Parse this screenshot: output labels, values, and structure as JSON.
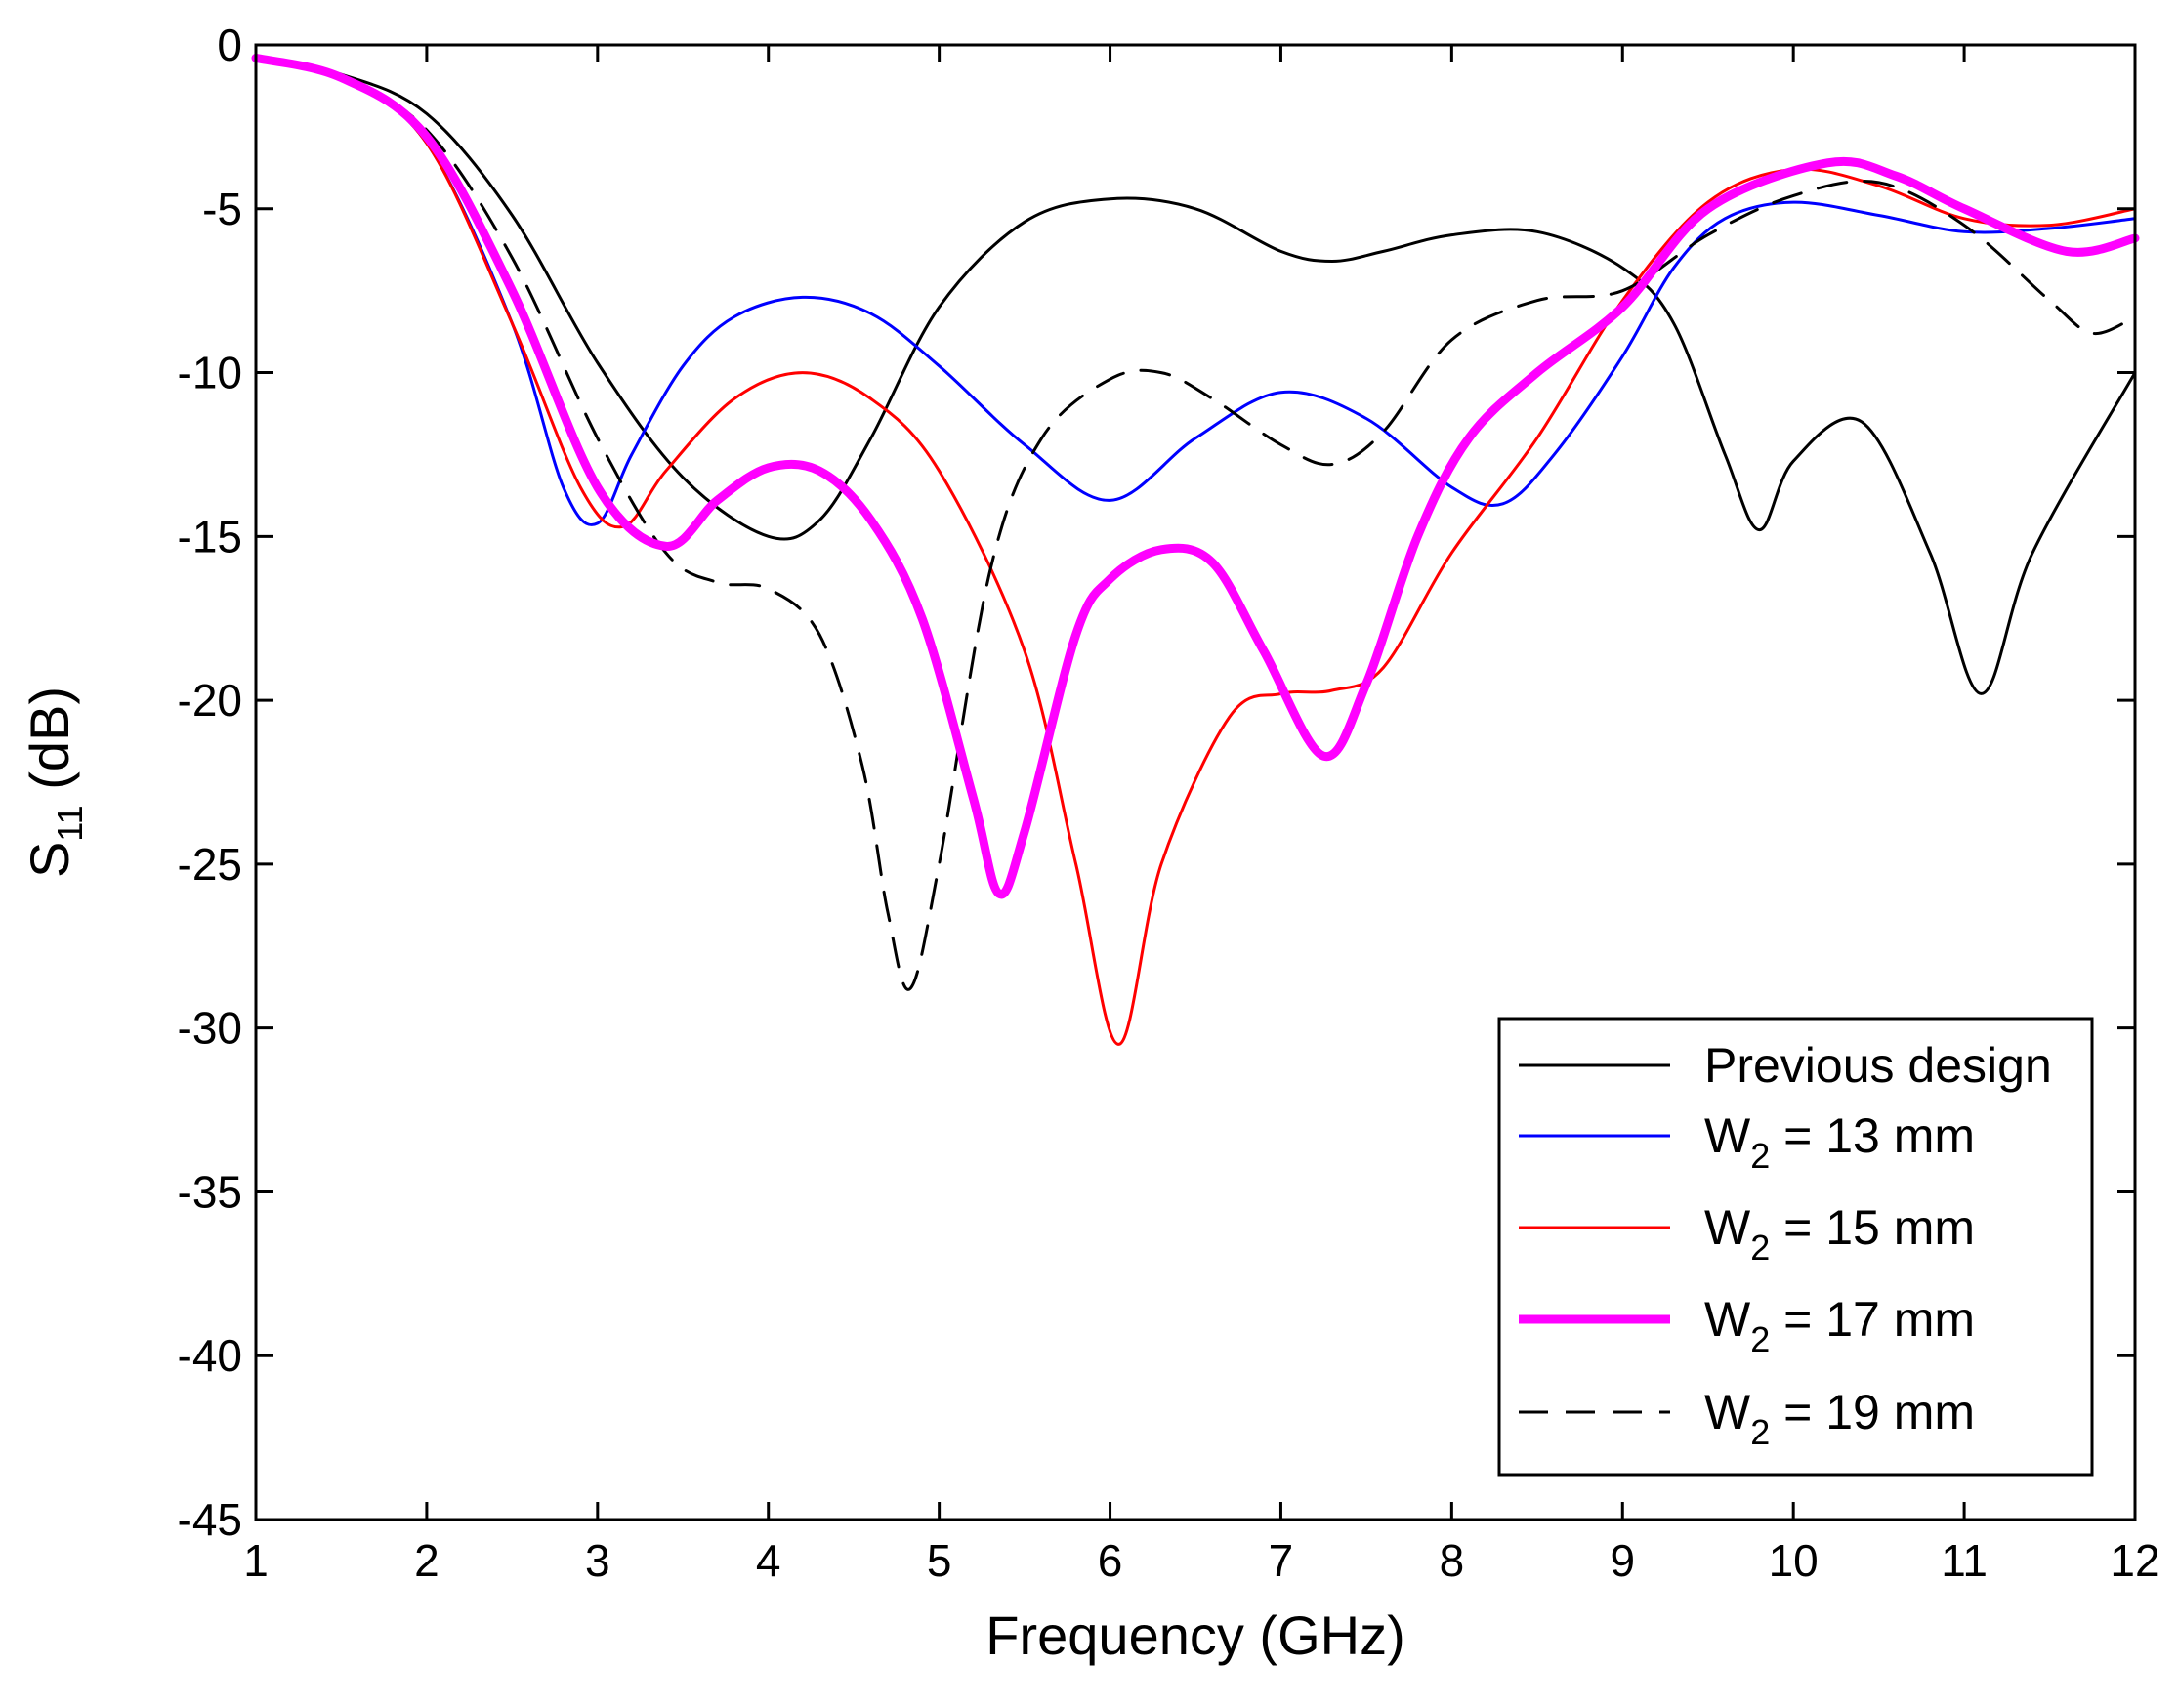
{
  "chart_data": {
    "type": "line",
    "xlabel": "Frequency (GHz)",
    "ylabel": {
      "base": "S",
      "sub": "11",
      "suffix": " (dB)"
    },
    "xlim": [
      1,
      12
    ],
    "ylim": [
      -45,
      0
    ],
    "xticks": [
      1,
      2,
      3,
      4,
      5,
      6,
      7,
      8,
      9,
      10,
      11,
      12
    ],
    "yticks": [
      0,
      -5,
      -10,
      -15,
      -20,
      -25,
      -30,
      -35,
      -40,
      -45
    ],
    "grid": false,
    "legend_position": "bottom-right",
    "series": [
      {
        "name": "Previous design",
        "label": {
          "base": "Previous design",
          "sub": "",
          "suffix": ""
        },
        "color": "#000000",
        "width": "thin",
        "dash": "solid",
        "x": [
          1,
          1.5,
          2,
          2.5,
          3,
          3.5,
          4,
          4.3,
          4.6,
          5,
          5.5,
          6,
          6.5,
          7,
          7.3,
          7.6,
          8,
          8.5,
          9,
          9.3,
          9.6,
          9.8,
          10,
          10.4,
          10.8,
          11.1,
          11.4,
          12
        ],
        "y": [
          -0.4,
          -0.9,
          -2.1,
          -5.2,
          -9.7,
          -13.2,
          -15.0,
          -14.5,
          -12.0,
          -8.0,
          -5.4,
          -4.7,
          -5.0,
          -6.3,
          -6.6,
          -6.3,
          -5.8,
          -5.7,
          -6.8,
          -8.5,
          -12.5,
          -14.8,
          -12.7,
          -11.5,
          -15.5,
          -19.8,
          -15.5,
          -10.0
        ]
      },
      {
        "name": "W2 = 13 mm",
        "label": {
          "base": "W",
          "sub": "2",
          "suffix": " = 13 mm"
        },
        "color": "#0000ff",
        "width": "thin",
        "dash": "solid",
        "x": [
          1,
          1.5,
          2,
          2.5,
          2.8,
          3.0,
          3.2,
          3.5,
          3.8,
          4.2,
          4.6,
          5,
          5.5,
          6,
          6.5,
          7,
          7.5,
          8,
          8.3,
          8.6,
          9,
          9.3,
          9.6,
          10,
          10.5,
          11,
          11.5,
          12
        ],
        "y": [
          -0.4,
          -1.0,
          -3.0,
          -8.5,
          -13.5,
          -14.6,
          -12.5,
          -9.8,
          -8.3,
          -7.7,
          -8.2,
          -9.8,
          -12.2,
          -13.9,
          -12.0,
          -10.6,
          -11.4,
          -13.5,
          -14.0,
          -12.5,
          -9.5,
          -6.8,
          -5.3,
          -4.8,
          -5.2,
          -5.7,
          -5.6,
          -5.3
        ]
      },
      {
        "name": "W2 = 15 mm",
        "label": {
          "base": "W",
          "sub": "2",
          "suffix": " = 15 mm"
        },
        "color": "#ff0000",
        "width": "thin",
        "dash": "solid",
        "x": [
          1,
          1.5,
          2,
          2.5,
          2.9,
          3.15,
          3.4,
          3.8,
          4.2,
          4.6,
          5,
          5.5,
          5.8,
          6.05,
          6.3,
          6.7,
          7.0,
          7.3,
          7.6,
          8,
          8.5,
          9,
          9.5,
          10,
          10.5,
          11,
          11.5,
          12
        ],
        "y": [
          -0.4,
          -1.0,
          -3.0,
          -8.5,
          -13.5,
          -14.7,
          -13.0,
          -10.8,
          -10.0,
          -10.8,
          -13.0,
          -18.5,
          -25.0,
          -30.5,
          -25.0,
          -20.5,
          -19.8,
          -19.7,
          -19.0,
          -15.5,
          -12.0,
          -7.8,
          -4.8,
          -3.8,
          -4.3,
          -5.3,
          -5.5,
          -5.0
        ]
      },
      {
        "name": "W2 = 17 mm",
        "label": {
          "base": "W",
          "sub": "2",
          "suffix": " = 17 mm"
        },
        "color": "#ff00ff",
        "width": "thick",
        "dash": "solid",
        "x": [
          1,
          1.5,
          2,
          2.5,
          3.0,
          3.4,
          3.7,
          4.0,
          4.3,
          4.6,
          4.9,
          5.2,
          5.35,
          5.5,
          5.8,
          6.0,
          6.3,
          6.6,
          6.9,
          7.25,
          7.5,
          7.8,
          8.1,
          8.5,
          9,
          9.5,
          10.2,
          10.6,
          11,
          11.6,
          12
        ],
        "y": [
          -0.4,
          -1.0,
          -2.8,
          -7.5,
          -13.5,
          -15.3,
          -13.9,
          -12.9,
          -13.0,
          -14.5,
          -17.5,
          -23.0,
          -25.9,
          -24.0,
          -18.0,
          -16.3,
          -15.4,
          -15.8,
          -18.5,
          -21.7,
          -19.5,
          -15.0,
          -12.0,
          -10.0,
          -8.0,
          -5.0,
          -3.6,
          -4.0,
          -5.0,
          -6.3,
          -5.9
        ]
      },
      {
        "name": "W2 = 19 mm",
        "label": {
          "base": "W",
          "sub": "2",
          "suffix": " = 19 mm"
        },
        "color": "#000000",
        "width": "thin",
        "dash": "dashed",
        "x": [
          1,
          1.5,
          2,
          2.5,
          3.0,
          3.4,
          3.7,
          4.0,
          4.3,
          4.55,
          4.7,
          4.83,
          5.0,
          5.3,
          5.6,
          6.0,
          6.3,
          6.6,
          7.0,
          7.3,
          7.6,
          8,
          8.5,
          9,
          9.5,
          10,
          10.5,
          11,
          11.5,
          11.75,
          12
        ],
        "y": [
          -0.4,
          -1.0,
          -2.6,
          -6.5,
          -12.0,
          -15.5,
          -16.4,
          -16.6,
          -18.0,
          -22.0,
          -26.5,
          -28.8,
          -25.0,
          -16.0,
          -12.0,
          -10.2,
          -10.0,
          -10.8,
          -12.2,
          -12.8,
          -11.8,
          -9.0,
          -7.8,
          -7.5,
          -5.8,
          -4.6,
          -4.2,
          -5.5,
          -7.8,
          -8.8,
          -8.3
        ]
      }
    ]
  }
}
